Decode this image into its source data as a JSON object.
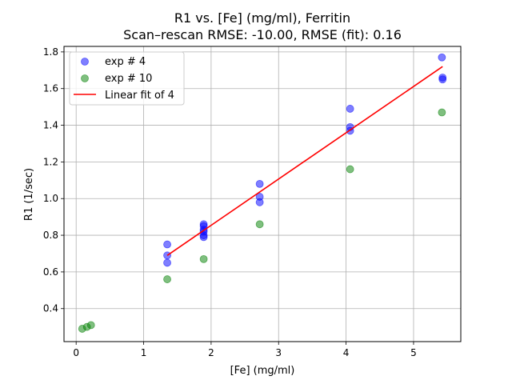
{
  "chart_data": {
    "type": "scatter",
    "title": "R1 vs. [Fe] (mg/ml), Ferritin",
    "subtitle": "Scan–rescan RMSE: -10.00, RMSE (fit): 0.16",
    "xlabel": "[Fe] (mg/ml)",
    "ylabel": "R1 (1/sec)",
    "xlim": [
      -0.18,
      5.7
    ],
    "ylim": [
      0.22,
      1.83
    ],
    "xticks": [
      0,
      1,
      2,
      3,
      4,
      5
    ],
    "yticks": [
      0.4,
      0.6,
      0.8,
      1.0,
      1.2,
      1.4,
      1.6,
      1.8
    ],
    "grid": true,
    "legend_position": "top-left",
    "series": [
      {
        "name": "exp # 4",
        "kind": "scatter",
        "color": "#0000ff",
        "points": [
          [
            1.35,
            0.75
          ],
          [
            1.35,
            0.69
          ],
          [
            1.35,
            0.65
          ],
          [
            1.89,
            0.86
          ],
          [
            1.89,
            0.85
          ],
          [
            1.89,
            0.83
          ],
          [
            1.89,
            0.82
          ],
          [
            1.89,
            0.8
          ],
          [
            1.89,
            0.79
          ],
          [
            2.72,
            1.08
          ],
          [
            2.72,
            1.01
          ],
          [
            2.72,
            0.98
          ],
          [
            4.06,
            1.49
          ],
          [
            4.06,
            1.39
          ],
          [
            4.06,
            1.37
          ],
          [
            5.42,
            1.77
          ],
          [
            5.43,
            1.66
          ],
          [
            5.43,
            1.65
          ]
        ]
      },
      {
        "name": "exp # 10",
        "kind": "scatter",
        "color": "#008000",
        "points": [
          [
            0.09,
            0.29
          ],
          [
            0.16,
            0.3
          ],
          [
            0.22,
            0.31
          ],
          [
            1.35,
            0.56
          ],
          [
            1.89,
            0.67
          ],
          [
            2.72,
            0.86
          ],
          [
            4.06,
            1.16
          ],
          [
            5.42,
            1.47
          ]
        ]
      },
      {
        "name": "Linear fit of 4",
        "kind": "line",
        "color": "#ff0000",
        "points": [
          [
            1.35,
            0.69
          ],
          [
            5.43,
            1.72
          ]
        ]
      }
    ]
  }
}
